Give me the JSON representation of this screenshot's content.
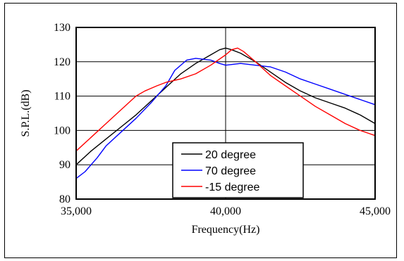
{
  "chart_data": {
    "type": "line",
    "title": "",
    "xlabel": "Frequency(Hz)",
    "ylabel": "S.P.L.(dB)",
    "xlim": [
      35000,
      45000
    ],
    "ylim": [
      80,
      130
    ],
    "x_ticks": [
      35000,
      40000,
      45000
    ],
    "x_tick_labels": [
      "35,000",
      "40,000",
      "45,000"
    ],
    "y_ticks": [
      80,
      90,
      100,
      110,
      120,
      130
    ],
    "y_tick_labels": [
      "80",
      "90",
      "100",
      "110",
      "120",
      "130"
    ],
    "grid": true,
    "legend_position": "bottom-center",
    "series": [
      {
        "name": "20 degree",
        "color": "#000000",
        "x": [
          35000,
          35500,
          36000,
          36500,
          37000,
          37500,
          38000,
          38500,
          39000,
          39500,
          39800,
          40000,
          40200,
          40500,
          41000,
          41500,
          42000,
          42500,
          43000,
          43500,
          44000,
          44500,
          45000
        ],
        "y": [
          90,
          94,
          97.5,
          101,
          104.5,
          108.5,
          112.5,
          116.5,
          119.5,
          122,
          123.5,
          124,
          123.5,
          122.5,
          120,
          117,
          114,
          111.5,
          109.5,
          108,
          106.5,
          104.5,
          102
        ]
      },
      {
        "name": "70 degree",
        "color": "#0000ff",
        "x": [
          35000,
          35300,
          35700,
          36000,
          36500,
          37000,
          37500,
          38000,
          38300,
          38700,
          39000,
          39500,
          39800,
          40000,
          40500,
          41000,
          41500,
          42000,
          42500,
          43000,
          43500,
          44000,
          44500,
          45000
        ],
        "y": [
          86,
          88,
          92,
          95.5,
          99.5,
          103.5,
          108,
          113,
          117.5,
          120.5,
          121,
          120.5,
          119.5,
          119,
          119.5,
          119,
          118.5,
          117,
          115,
          113.5,
          112,
          110.5,
          109,
          107.5
        ]
      },
      {
        "name": "-15 degree",
        "color": "#ff0000",
        "x": [
          35000,
          35500,
          36000,
          36500,
          37000,
          37300,
          37700,
          38000,
          38500,
          39000,
          39500,
          40000,
          40200,
          40400,
          40600,
          41000,
          41500,
          42000,
          42500,
          43000,
          43500,
          44000,
          44500,
          45000
        ],
        "y": [
          94,
          98,
          102,
          106,
          110,
          111.5,
          113,
          114,
          115,
          116.5,
          119,
          122,
          123.5,
          124,
          123,
          120,
          116,
          113,
          110,
          107,
          104.5,
          102,
          100,
          98.5
        ]
      }
    ]
  }
}
